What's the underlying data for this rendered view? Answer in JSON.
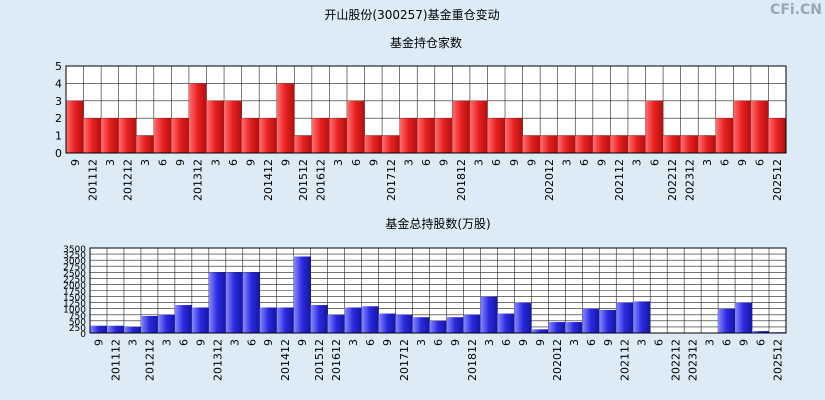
{
  "title": "开山股份(300257)基金重仓变动",
  "watermark": "CFi.CN",
  "chart_data": [
    {
      "type": "bar",
      "title": "基金持仓家数",
      "color": "#e82020",
      "categories": [
        "9",
        "201112",
        "3",
        "201212",
        "3",
        "6",
        "9",
        "201312",
        "3",
        "6",
        "9",
        "201412",
        "9",
        "201512",
        "201612",
        "3",
        "6",
        "9",
        "201712",
        "3",
        "6",
        "9",
        "201812",
        "3",
        "6",
        "9",
        "9",
        "202012",
        "3",
        "6",
        "9",
        "202112",
        "3",
        "6",
        "202212",
        "202312",
        "3",
        "6",
        "9",
        "6",
        "202512"
      ],
      "values": [
        3,
        2,
        2,
        2,
        1,
        2,
        2,
        4,
        3,
        3,
        2,
        2,
        4,
        1,
        2,
        2,
        3,
        1,
        1,
        2,
        2,
        2,
        3,
        3,
        2,
        2,
        1,
        1,
        1,
        1,
        1,
        1,
        1,
        3,
        1,
        1,
        1,
        2,
        3,
        3,
        2
      ],
      "ylim": [
        0,
        5
      ],
      "yticks": [
        0,
        1,
        2,
        3,
        4,
        5
      ],
      "grid": true
    },
    {
      "type": "bar",
      "title": "基金总持股数(万股)",
      "color": "#2a2ae0",
      "categories": [
        "9",
        "201112",
        "3",
        "201212",
        "3",
        "6",
        "9",
        "201312",
        "3",
        "6",
        "9",
        "201412",
        "9",
        "201512",
        "201612",
        "3",
        "6",
        "9",
        "201712",
        "3",
        "6",
        "9",
        "201812",
        "3",
        "6",
        "9",
        "9",
        "202012",
        "3",
        "6",
        "9",
        "202112",
        "3",
        "6",
        "202212",
        "202312",
        "3",
        "6",
        "9",
        "6",
        "202512"
      ],
      "values": [
        300,
        300,
        250,
        700,
        750,
        1150,
        1050,
        2500,
        2500,
        2500,
        1050,
        1050,
        3150,
        1150,
        750,
        1050,
        1100,
        800,
        750,
        650,
        500,
        650,
        750,
        1500,
        800,
        1250,
        150,
        450,
        450,
        1000,
        950,
        1250,
        1300,
        20,
        20,
        20,
        20,
        1000,
        1250,
        80,
        30
      ],
      "ylim": [
        0,
        3500
      ],
      "yticks": [
        0,
        250,
        500,
        750,
        1000,
        1250,
        1500,
        1750,
        2000,
        2250,
        2500,
        2750,
        3000,
        3250,
        3500
      ],
      "grid": true
    }
  ]
}
